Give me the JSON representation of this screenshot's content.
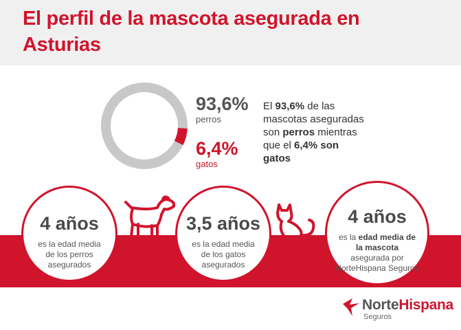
{
  "header": {
    "title": "El perfil de la mascota asegurada en Asturias"
  },
  "chart_data": {
    "type": "pie",
    "series": [
      {
        "name": "perros",
        "value": 93.6,
        "label": "93,6%",
        "color": "#c8c8c8"
      },
      {
        "name": "gatos",
        "value": 6.4,
        "label": "6,4%",
        "color": "#d0142c"
      }
    ]
  },
  "description": {
    "t1": "El ",
    "b1": "93,6%",
    "t2": " de las mascotas aseguradas son ",
    "b2": "perros",
    "t3": " mientras que el ",
    "b3": "6,4% son gatos"
  },
  "stats": {
    "dogs": {
      "big": "4 años",
      "text": "es la edad media de los perros asegurados"
    },
    "cats": {
      "big": "3,5 años",
      "text": "es la edad media de los gatos asegurados"
    },
    "all": {
      "big": "4 años",
      "t1": "es la ",
      "b1": "edad media de la mascota",
      "t2": " asegurada por NorteHispana Seguros"
    }
  },
  "icons": {
    "dog": "dog-icon",
    "cat": "cat-icon",
    "logo": "nortehispana-bird-icon"
  },
  "logo": {
    "name_a": "Norte",
    "name_b": "Hispana",
    "sub": "Seguros"
  },
  "colors": {
    "brand_red": "#d0142c",
    "donut_grey": "#c8c8c8",
    "header_bg": "#f0f0f0"
  }
}
